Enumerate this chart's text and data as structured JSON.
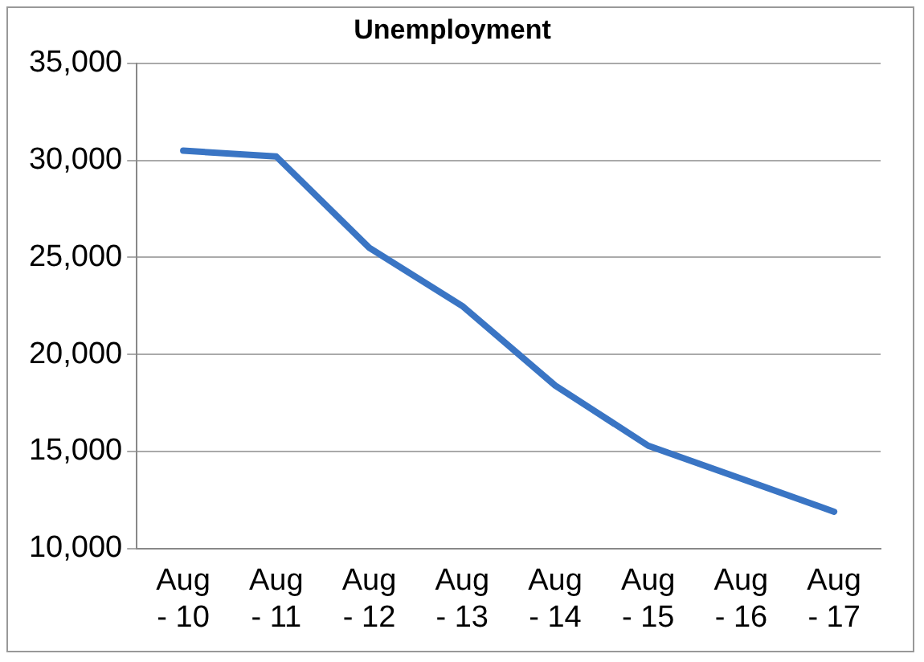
{
  "chart_data": {
    "type": "line",
    "title": "Unemployment",
    "categories": [
      "Aug - 10",
      "Aug - 11",
      "Aug - 12",
      "Aug - 13",
      "Aug - 14",
      "Aug - 15",
      "Aug - 16",
      "Aug - 17"
    ],
    "series": [
      {
        "color": "#3a75c4",
        "values": [
          30500,
          30200,
          25500,
          22500,
          18400,
          15300,
          13600,
          11900
        ]
      }
    ],
    "ylim": [
      10000,
      35000
    ],
    "yticks": [
      {
        "value": 10000,
        "label": "10,000"
      },
      {
        "value": 15000,
        "label": "15,000"
      },
      {
        "value": 20000,
        "label": "20,000"
      },
      {
        "value": 25000,
        "label": "25,000"
      },
      {
        "value": 30000,
        "label": "30,000"
      },
      {
        "value": 35000,
        "label": "35,000"
      }
    ],
    "grid": "y",
    "legend": false,
    "marker": "none",
    "line_style": "solid"
  }
}
